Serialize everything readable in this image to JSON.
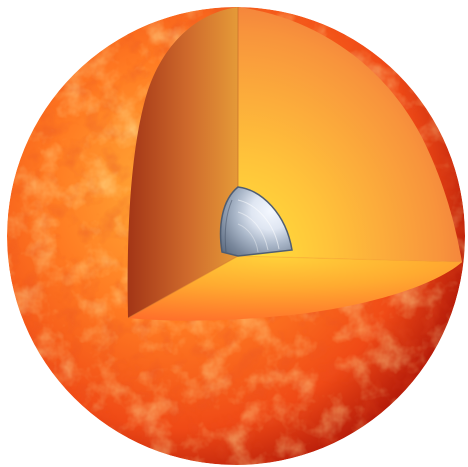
{
  "scene": {
    "subject": "sphere-cutaway",
    "colors": {
      "background": "#ffffff",
      "surface_light": "#ffd24a",
      "surface_mid": "#ff6a18",
      "surface_dark": "#b81d0a",
      "cut_left_outer": "#a33516",
      "cut_left_inner": "#e59a38",
      "cut_right_inner": "#ffe63a",
      "cut_right_outer": "#f08a3a",
      "cut_bottom_inner": "#ffd23a",
      "cut_bottom_outer": "#ff6a2a",
      "core_light": "#f4f8ff",
      "core_dark": "#5b6a80"
    }
  }
}
